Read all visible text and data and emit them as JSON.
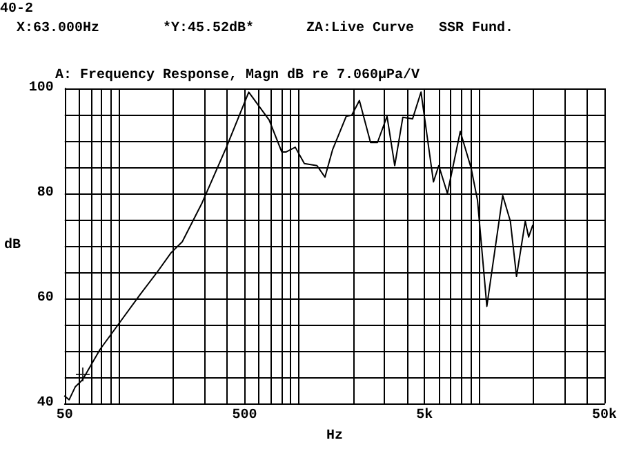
{
  "chart_data": {
    "type": "line",
    "title": "A: Frequency Response, Magn dB re 7.060μPa/V",
    "annotations": [
      "40-2",
      "X:63.000Hz",
      "*Y:45.52dB*",
      "ZA:Live Curve",
      "SSR Fund."
    ],
    "xlabel": "Hz",
    "ylabel": "dB",
    "log": "x",
    "grid": true,
    "line_style": "solid",
    "xlim": [
      50,
      50000
    ],
    "ylim": [
      40,
      100
    ],
    "xticks": [
      {
        "value": 50,
        "label": "50"
      },
      {
        "value": 60,
        "label": null
      },
      {
        "value": 70,
        "label": null
      },
      {
        "value": 80,
        "label": null
      },
      {
        "value": 90,
        "label": null
      },
      {
        "value": 100,
        "label": null
      },
      {
        "value": 200,
        "label": null
      },
      {
        "value": 300,
        "label": null
      },
      {
        "value": 400,
        "label": null
      },
      {
        "value": 500,
        "label": "500"
      },
      {
        "value": 600,
        "label": null
      },
      {
        "value": 700,
        "label": null
      },
      {
        "value": 800,
        "label": null
      },
      {
        "value": 900,
        "label": null
      },
      {
        "value": 1000,
        "label": null
      },
      {
        "value": 2000,
        "label": null
      },
      {
        "value": 3000,
        "label": null
      },
      {
        "value": 4000,
        "label": null
      },
      {
        "value": 5000,
        "label": "5k"
      },
      {
        "value": 6000,
        "label": null
      },
      {
        "value": 7000,
        "label": null
      },
      {
        "value": 8000,
        "label": null
      },
      {
        "value": 9000,
        "label": null
      },
      {
        "value": 10000,
        "label": null
      },
      {
        "value": 20000,
        "label": null
      },
      {
        "value": 30000,
        "label": null
      },
      {
        "value": 40000,
        "label": null
      },
      {
        "value": 50000,
        "label": "50k"
      }
    ],
    "yticks": [
      40,
      {
        "value": 45,
        "label": null
      },
      {
        "value": 50,
        "label": null
      },
      {
        "value": 55,
        "label": null
      },
      60,
      {
        "value": 65,
        "label": null
      },
      {
        "value": 70,
        "label": null
      },
      {
        "value": 75,
        "label": null
      },
      80,
      {
        "value": 85,
        "label": null
      },
      {
        "value": 90,
        "label": null
      },
      {
        "value": 95,
        "label": null
      },
      100
    ],
    "series": [
      {
        "color": "#000000",
        "x": [
          50,
          52.9,
          57.3,
          62.8,
          78.6,
          99,
          131,
          164,
          195,
          225,
          290,
          396,
          527,
          684,
          804,
          851,
          956,
          1074,
          1262,
          1398,
          1540,
          1835,
          1970,
          2172,
          2505,
          2738,
          3094,
          3414,
          3787,
          4289,
          4780,
          5605,
          6000,
          6700,
          7900,
          9080,
          9850,
          11100,
          13600,
          15000,
          16230,
          18150,
          18950,
          19950
        ],
        "values": [
          41.4,
          40.7,
          43.2,
          44.5,
          50.3,
          55,
          60.7,
          65.1,
          68.7,
          70.8,
          78.2,
          88.8,
          99.3,
          94,
          87.9,
          87.9,
          88.8,
          85.7,
          85.3,
          83.1,
          88.3,
          94.7,
          94.9,
          97.7,
          89.7,
          89.7,
          94.7,
          85.3,
          94.5,
          94.2,
          99.3,
          82.2,
          85.3,
          80,
          91.8,
          84.8,
          78.7,
          58.5,
          79.6,
          74.7,
          64.2,
          74.7,
          71.7,
          73.9
        ]
      },
      {
        "type": "scatter",
        "marker": "cross",
        "color": "#000000",
        "x": [
          63
        ],
        "values": [
          45.52
        ]
      }
    ]
  }
}
